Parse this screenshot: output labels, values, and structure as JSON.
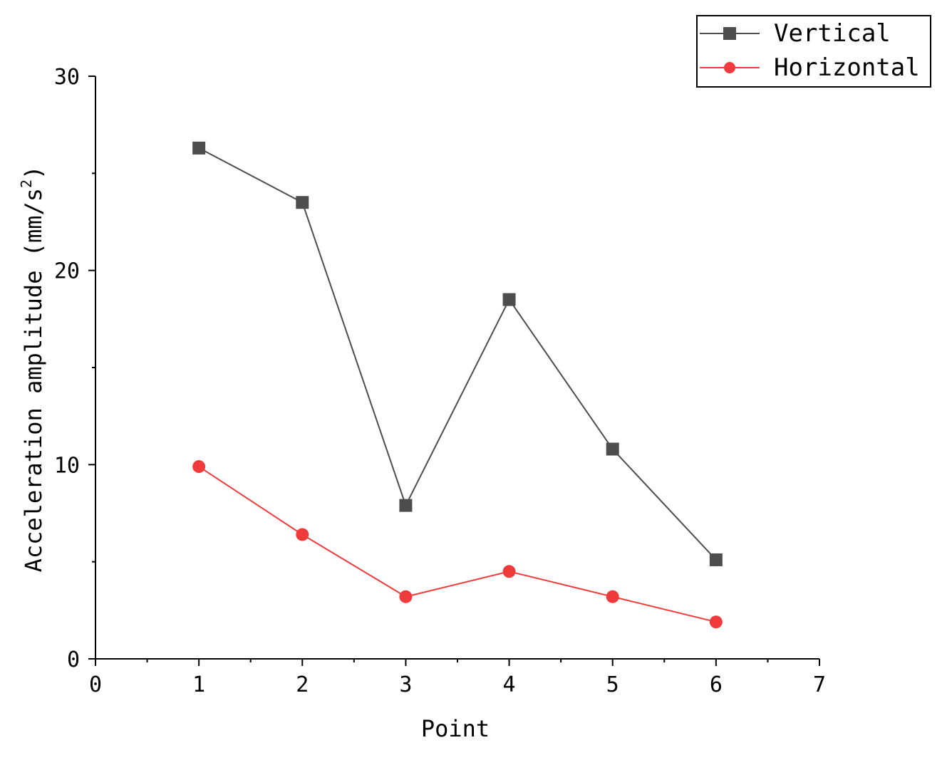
{
  "chart_data": {
    "type": "line",
    "title": "",
    "xlabel": "Point",
    "ylabel": "Acceleration amplitude (mm/s",
    "ylabel_superscript": "2",
    "ylabel_suffix": ")",
    "xlim": [
      0,
      7
    ],
    "ylim": [
      0,
      30
    ],
    "x_ticks": [
      0,
      1,
      2,
      3,
      4,
      5,
      6,
      7
    ],
    "y_ticks": [
      0,
      10,
      20,
      30
    ],
    "x_minor_step": 0.5,
    "y_minor_step": 5,
    "grid": false,
    "legend_position": "top-right",
    "series": [
      {
        "name": "Vertical",
        "color": "#4d4d4d",
        "marker": "square",
        "x": [
          1,
          2,
          3,
          4,
          5,
          6
        ],
        "values": [
          26.3,
          23.5,
          7.9,
          18.5,
          10.8,
          5.1
        ]
      },
      {
        "name": "Horizontal",
        "color": "#ef3b3b",
        "marker": "circle",
        "x": [
          1,
          2,
          3,
          4,
          5,
          6
        ],
        "values": [
          9.9,
          6.4,
          3.2,
          4.5,
          3.2,
          1.9
        ]
      }
    ]
  }
}
